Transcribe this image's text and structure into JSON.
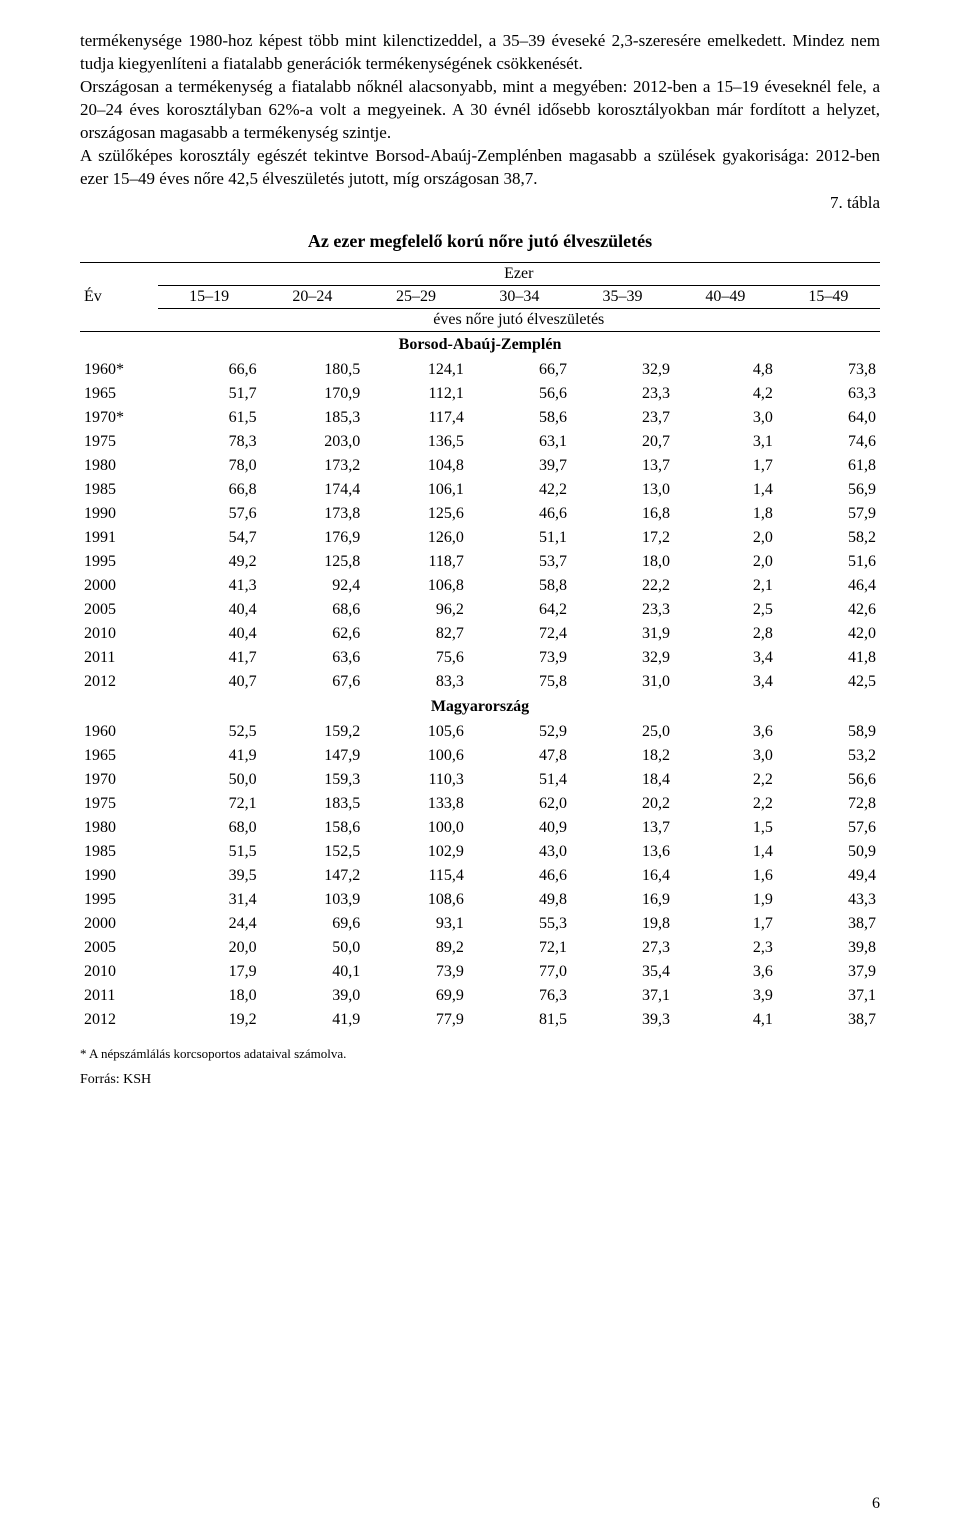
{
  "paragraph": "termékenysége 1980-hoz képest több mint kilenctizeddel, a 35–39 éveseké 2,3-szeresére emelkedett. Mindez nem tudja kiegyenlíteni a fiatalabb generációk termékenységének csökkenését.\nOrszágosan a termékenység a fiatalabb nőknél alacsonyabb, mint a megyében: 2012-ben a 15–19 éveseknél fele, a 20–24 éves korosztályban 62%-a volt a megyeinek. A 30 évnél idősebb korosztályokban már fordított a helyzet, országosan magasabb a termékenység szintje.\nA szülőképes korosztály egészét tekintve Borsod-Abaúj-Zemplénben magasabb a szülések gyakorisága: 2012-ben ezer 15–49 éves nőre 42,5 élveszületés jutott, míg országosan 38,7.",
  "tableLabel": "7. tábla",
  "tableTitle": "Az ezer megfelelő korú nőre jutó élveszületés",
  "header": {
    "yearLabel": "Év",
    "unitLabel": "Ezer",
    "columns": [
      "15–19",
      "20–24",
      "25–29",
      "30–34",
      "35–39",
      "40–49",
      "15–49"
    ],
    "subLabel": "éves nőre jutó élveszületés"
  },
  "section1": {
    "label": "Borsod-Abaúj-Zemplén",
    "rows": [
      {
        "year": "1960*",
        "v": [
          "66,6",
          "180,5",
          "124,1",
          "66,7",
          "32,9",
          "4,8",
          "73,8"
        ]
      },
      {
        "year": "1965",
        "v": [
          "51,7",
          "170,9",
          "112,1",
          "56,6",
          "23,3",
          "4,2",
          "63,3"
        ]
      },
      {
        "year": "1970*",
        "v": [
          "61,5",
          "185,3",
          "117,4",
          "58,6",
          "23,7",
          "3,0",
          "64,0"
        ]
      },
      {
        "year": "1975",
        "v": [
          "78,3",
          "203,0",
          "136,5",
          "63,1",
          "20,7",
          "3,1",
          "74,6"
        ]
      },
      {
        "year": "1980",
        "v": [
          "78,0",
          "173,2",
          "104,8",
          "39,7",
          "13,7",
          "1,7",
          "61,8"
        ]
      },
      {
        "year": "1985",
        "v": [
          "66,8",
          "174,4",
          "106,1",
          "42,2",
          "13,0",
          "1,4",
          "56,9"
        ]
      },
      {
        "year": "1990",
        "v": [
          "57,6",
          "173,8",
          "125,6",
          "46,6",
          "16,8",
          "1,8",
          "57,9"
        ]
      },
      {
        "year": "1991",
        "v": [
          "54,7",
          "176,9",
          "126,0",
          "51,1",
          "17,2",
          "2,0",
          "58,2"
        ]
      },
      {
        "year": "1995",
        "v": [
          "49,2",
          "125,8",
          "118,7",
          "53,7",
          "18,0",
          "2,0",
          "51,6"
        ]
      },
      {
        "year": "2000",
        "v": [
          "41,3",
          "92,4",
          "106,8",
          "58,8",
          "22,2",
          "2,1",
          "46,4"
        ]
      },
      {
        "year": "2005",
        "v": [
          "40,4",
          "68,6",
          "96,2",
          "64,2",
          "23,3",
          "2,5",
          "42,6"
        ]
      },
      {
        "year": "2010",
        "v": [
          "40,4",
          "62,6",
          "82,7",
          "72,4",
          "31,9",
          "2,8",
          "42,0"
        ]
      },
      {
        "year": "2011",
        "v": [
          "41,7",
          "63,6",
          "75,6",
          "73,9",
          "32,9",
          "3,4",
          "41,8"
        ]
      },
      {
        "year": "2012",
        "v": [
          "40,7",
          "67,6",
          "83,3",
          "75,8",
          "31,0",
          "3,4",
          "42,5"
        ]
      }
    ]
  },
  "section2": {
    "label": "Magyarország",
    "rows": [
      {
        "year": "1960",
        "v": [
          "52,5",
          "159,2",
          "105,6",
          "52,9",
          "25,0",
          "3,6",
          "58,9"
        ]
      },
      {
        "year": "1965",
        "v": [
          "41,9",
          "147,9",
          "100,6",
          "47,8",
          "18,2",
          "3,0",
          "53,2"
        ]
      },
      {
        "year": "1970",
        "v": [
          "50,0",
          "159,3",
          "110,3",
          "51,4",
          "18,4",
          "2,2",
          "56,6"
        ]
      },
      {
        "year": "1975",
        "v": [
          "72,1",
          "183,5",
          "133,8",
          "62,0",
          "20,2",
          "2,2",
          "72,8"
        ]
      },
      {
        "year": "1980",
        "v": [
          "68,0",
          "158,6",
          "100,0",
          "40,9",
          "13,7",
          "1,5",
          "57,6"
        ]
      },
      {
        "year": "1985",
        "v": [
          "51,5",
          "152,5",
          "102,9",
          "43,0",
          "13,6",
          "1,4",
          "50,9"
        ]
      },
      {
        "year": "1990",
        "v": [
          "39,5",
          "147,2",
          "115,4",
          "46,6",
          "16,4",
          "1,6",
          "49,4"
        ]
      },
      {
        "year": "1995",
        "v": [
          "31,4",
          "103,9",
          "108,6",
          "49,8",
          "16,9",
          "1,9",
          "43,3"
        ]
      },
      {
        "year": "2000",
        "v": [
          "24,4",
          "69,6",
          "93,1",
          "55,3",
          "19,8",
          "1,7",
          "38,7"
        ]
      },
      {
        "year": "2005",
        "v": [
          "20,0",
          "50,0",
          "89,2",
          "72,1",
          "27,3",
          "2,3",
          "39,8"
        ]
      },
      {
        "year": "2010",
        "v": [
          "17,9",
          "40,1",
          "73,9",
          "77,0",
          "35,4",
          "3,6",
          "37,9"
        ]
      },
      {
        "year": "2011",
        "v": [
          "18,0",
          "39,0",
          "69,9",
          "76,3",
          "37,1",
          "3,9",
          "37,1"
        ]
      },
      {
        "year": "2012",
        "v": [
          "19,2",
          "41,9",
          "77,9",
          "81,5",
          "39,3",
          "4,1",
          "38,7"
        ]
      }
    ]
  },
  "footnote": "* A népszámlálás korcsoportos adataival számolva.",
  "source": "Forrás: KSH",
  "pageNumber": "6"
}
